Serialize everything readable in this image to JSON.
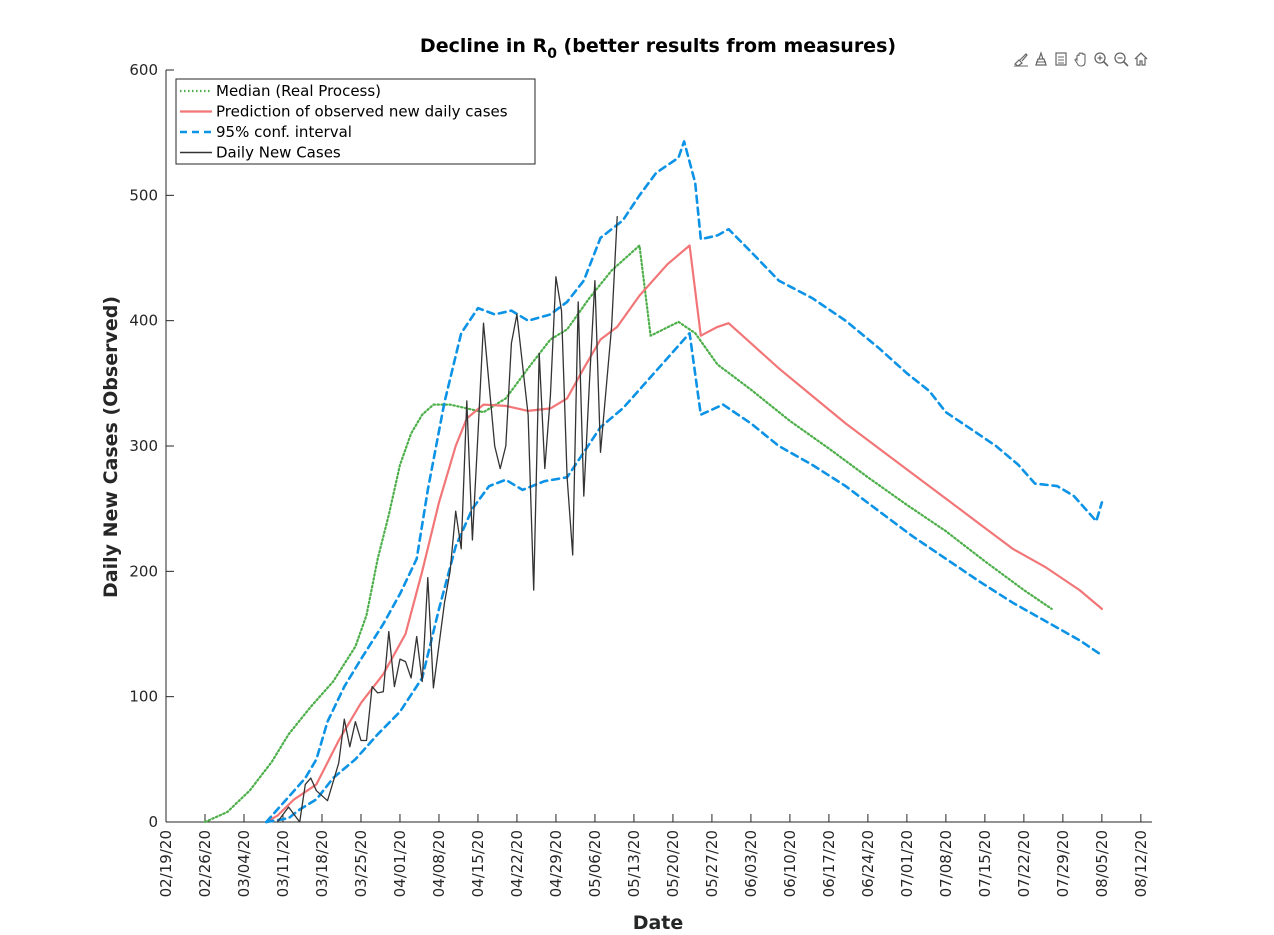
{
  "chart_data": {
    "type": "line",
    "title": "Decline in R",
    "title_subscript": "0",
    "title_suffix": " (better results from measures)",
    "xlabel": "Date",
    "ylabel": "Daily New Cases (Observed)",
    "xlim": [
      "02/19/20",
      "08/14/20"
    ],
    "ylim": [
      0,
      600
    ],
    "x_ticks": [
      "02/19/20",
      "02/26/20",
      "03/04/20",
      "03/11/20",
      "03/18/20",
      "03/25/20",
      "04/01/20",
      "04/08/20",
      "04/15/20",
      "04/22/20",
      "04/29/20",
      "05/06/20",
      "05/13/20",
      "05/20/20",
      "05/27/20",
      "06/03/20",
      "06/10/20",
      "06/17/20",
      "06/24/20",
      "07/01/20",
      "07/08/20",
      "07/15/20",
      "07/22/20",
      "07/29/20",
      "08/05/20",
      "08/12/20"
    ],
    "y_ticks": [
      0,
      100,
      200,
      300,
      400,
      500,
      600
    ],
    "grid": false,
    "legend_position": "top-left",
    "series": [
      {
        "name": "Median (Real Process)",
        "color": "#4daf4a",
        "style": "dotted",
        "points": [
          [
            "02/26/20",
            0
          ],
          [
            "03/01/20",
            8
          ],
          [
            "03/05/20",
            25
          ],
          [
            "03/09/20",
            48
          ],
          [
            "03/12/20",
            70
          ],
          [
            "03/16/20",
            92
          ],
          [
            "03/20/20",
            112
          ],
          [
            "03/24/20",
            140
          ],
          [
            "03/26/20",
            165
          ],
          [
            "03/28/20",
            210
          ],
          [
            "03/30/20",
            245
          ],
          [
            "04/01/20",
            285
          ],
          [
            "04/03/20",
            310
          ],
          [
            "04/05/20",
            325
          ],
          [
            "04/07/20",
            333
          ],
          [
            "04/10/20",
            333
          ],
          [
            "04/13/20",
            330
          ],
          [
            "04/16/20",
            327
          ],
          [
            "04/20/20",
            338
          ],
          [
            "04/24/20",
            362
          ],
          [
            "04/28/20",
            385
          ],
          [
            "05/01/20",
            393
          ],
          [
            "05/05/20",
            418
          ],
          [
            "05/09/20",
            440
          ],
          [
            "05/14/20",
            460
          ],
          [
            "05/16/20",
            388
          ],
          [
            "05/21/20",
            399
          ],
          [
            "05/24/20",
            390
          ],
          [
            "05/28/20",
            365
          ],
          [
            "06/03/20",
            345
          ],
          [
            "06/10/20",
            320
          ],
          [
            "06/17/20",
            298
          ],
          [
            "06/24/20",
            275
          ],
          [
            "07/01/20",
            253
          ],
          [
            "07/08/20",
            232
          ],
          [
            "07/15/20",
            208
          ],
          [
            "07/22/20",
            185
          ],
          [
            "07/27/20",
            170
          ]
        ]
      },
      {
        "name": "Prediction of observed new daily cases",
        "color": "#f27678",
        "style": "solid",
        "points": [
          [
            "03/08/20",
            0
          ],
          [
            "03/10/20",
            5
          ],
          [
            "03/13/20",
            18
          ],
          [
            "03/17/20",
            30
          ],
          [
            "03/21/20",
            65
          ],
          [
            "03/25/20",
            95
          ],
          [
            "03/29/20",
            118
          ],
          [
            "04/02/20",
            150
          ],
          [
            "04/05/20",
            200
          ],
          [
            "04/08/20",
            255
          ],
          [
            "04/11/20",
            300
          ],
          [
            "04/13/20",
            322
          ],
          [
            "04/16/20",
            333
          ],
          [
            "04/20/20",
            332
          ],
          [
            "04/24/20",
            328
          ],
          [
            "04/28/20",
            330
          ],
          [
            "05/01/20",
            338
          ],
          [
            "05/04/20",
            362
          ],
          [
            "05/07/20",
            385
          ],
          [
            "05/10/20",
            395
          ],
          [
            "05/14/20",
            420
          ],
          [
            "05/19/20",
            445
          ],
          [
            "05/23/20",
            460
          ],
          [
            "05/25/20",
            388
          ],
          [
            "05/28/20",
            395
          ],
          [
            "05/30/20",
            398
          ],
          [
            "06/03/20",
            382
          ],
          [
            "06/08/20",
            362
          ],
          [
            "06/14/20",
            340
          ],
          [
            "06/20/20",
            318
          ],
          [
            "06/26/20",
            298
          ],
          [
            "07/02/20",
            278
          ],
          [
            "07/08/20",
            258
          ],
          [
            "07/14/20",
            238
          ],
          [
            "07/20/20",
            218
          ],
          [
            "07/26/20",
            203
          ],
          [
            "08/01/20",
            185
          ],
          [
            "08/05/20",
            170
          ]
        ]
      },
      {
        "name": "95% conf. interval",
        "color": "#0d93e6",
        "style": "dashed",
        "points": [
          [
            "03/08/20",
            0
          ],
          [
            "03/12/20",
            20
          ],
          [
            "03/15/20",
            35
          ],
          [
            "03/17/20",
            50
          ],
          [
            "03/19/20",
            80
          ],
          [
            "03/22/20",
            108
          ],
          [
            "03/25/20",
            130
          ],
          [
            "03/29/20",
            158
          ],
          [
            "04/01/20",
            182
          ],
          [
            "04/04/20",
            210
          ],
          [
            "04/06/20",
            265
          ],
          [
            "04/09/20",
            335
          ],
          [
            "04/12/20",
            390
          ],
          [
            "04/15/20",
            410
          ],
          [
            "04/18/20",
            405
          ],
          [
            "04/21/20",
            408
          ],
          [
            "04/24/20",
            400
          ],
          [
            "04/28/20",
            405
          ],
          [
            "05/01/20",
            415
          ],
          [
            "05/04/20",
            432
          ],
          [
            "05/07/20",
            466
          ],
          [
            "05/11/20",
            480
          ],
          [
            "05/14/20",
            500
          ],
          [
            "05/17/20",
            518
          ],
          [
            "05/21/20",
            530
          ],
          [
            "05/22/20",
            543
          ],
          [
            "05/24/20",
            510
          ],
          [
            "05/25/20",
            465
          ],
          [
            "05/28/20",
            468
          ],
          [
            "05/30/20",
            473
          ],
          [
            "06/03/20",
            455
          ],
          [
            "06/08/20",
            432
          ],
          [
            "06/14/20",
            418
          ],
          [
            "06/20/20",
            400
          ],
          [
            "06/26/20",
            378
          ],
          [
            "07/01/20",
            358
          ],
          [
            "07/05/20",
            344
          ],
          [
            "07/08/20",
            327
          ],
          [
            "07/12/20",
            315
          ],
          [
            "07/17/20",
            300
          ],
          [
            "07/21/20",
            285
          ],
          [
            "07/24/20",
            270
          ],
          [
            "07/28/20",
            268
          ],
          [
            "07/31/20",
            260
          ],
          [
            "08/02/20",
            250
          ],
          [
            "08/04/20",
            240
          ],
          [
            "08/05/20",
            255
          ]
        ]
      },
      {
        "name": "95% conf. interval (lower)",
        "color": "#0d93e6",
        "style": "dashed",
        "points": [
          [
            "03/08/20",
            0
          ],
          [
            "03/12/20",
            3
          ],
          [
            "03/14/20",
            10
          ],
          [
            "03/17/20",
            18
          ],
          [
            "03/20/20",
            35
          ],
          [
            "03/24/20",
            50
          ],
          [
            "03/28/20",
            70
          ],
          [
            "04/01/20",
            88
          ],
          [
            "04/05/20",
            115
          ],
          [
            "04/08/20",
            170
          ],
          [
            "04/11/20",
            220
          ],
          [
            "04/14/20",
            250
          ],
          [
            "04/17/20",
            268
          ],
          [
            "04/20/20",
            273
          ],
          [
            "04/23/20",
            265
          ],
          [
            "04/27/20",
            272
          ],
          [
            "05/01/20",
            275
          ],
          [
            "05/04/20",
            295
          ],
          [
            "05/07/20",
            315
          ],
          [
            "05/11/20",
            330
          ],
          [
            "05/16/20",
            355
          ],
          [
            "05/20/20",
            375
          ],
          [
            "05/23/20",
            390
          ],
          [
            "05/25/20",
            325
          ],
          [
            "05/29/20",
            333
          ],
          [
            "06/03/20",
            318
          ],
          [
            "06/08/20",
            300
          ],
          [
            "06/14/20",
            285
          ],
          [
            "06/20/20",
            268
          ],
          [
            "06/26/20",
            248
          ],
          [
            "07/02/20",
            228
          ],
          [
            "07/08/20",
            210
          ],
          [
            "07/14/20",
            192
          ],
          [
            "07/20/20",
            175
          ],
          [
            "07/26/20",
            160
          ],
          [
            "08/01/20",
            145
          ],
          [
            "08/05/20",
            133
          ]
        ]
      },
      {
        "name": "Daily New Cases",
        "color": "#333333",
        "style": "solid",
        "points": [
          [
            "03/10/20",
            0
          ],
          [
            "03/12/20",
            12
          ],
          [
            "03/13/20",
            6
          ],
          [
            "03/14/20",
            0
          ],
          [
            "03/15/20",
            30
          ],
          [
            "03/16/20",
            35
          ],
          [
            "03/17/20",
            25
          ],
          [
            "03/19/20",
            17
          ],
          [
            "03/20/20",
            32
          ],
          [
            "03/21/20",
            47
          ],
          [
            "03/22/20",
            82
          ],
          [
            "03/23/20",
            60
          ],
          [
            "03/24/20",
            80
          ],
          [
            "03/25/20",
            65
          ],
          [
            "03/26/20",
            65
          ],
          [
            "03/27/20",
            108
          ],
          [
            "03/28/20",
            103
          ],
          [
            "03/29/20",
            104
          ],
          [
            "03/30/20",
            152
          ],
          [
            "03/31/20",
            108
          ],
          [
            "04/01/20",
            130
          ],
          [
            "04/02/20",
            128
          ],
          [
            "04/03/20",
            115
          ],
          [
            "04/04/20",
            148
          ],
          [
            "04/05/20",
            112
          ],
          [
            "04/06/20",
            195
          ],
          [
            "04/07/20",
            107
          ],
          [
            "04/09/20",
            175
          ],
          [
            "04/10/20",
            200
          ],
          [
            "04/11/20",
            248
          ],
          [
            "04/12/20",
            218
          ],
          [
            "04/13/20",
            336
          ],
          [
            "04/14/20",
            225
          ],
          [
            "04/15/20",
            310
          ],
          [
            "04/16/20",
            398
          ],
          [
            "04/18/20",
            300
          ],
          [
            "04/19/20",
            282
          ],
          [
            "04/20/20",
            300
          ],
          [
            "04/21/20",
            382
          ],
          [
            "04/22/20",
            405
          ],
          [
            "04/24/20",
            325
          ],
          [
            "04/25/20",
            185
          ],
          [
            "04/26/20",
            374
          ],
          [
            "04/27/20",
            282
          ],
          [
            "04/28/20",
            340
          ],
          [
            "04/29/20",
            435
          ],
          [
            "04/30/20",
            408
          ],
          [
            "05/01/20",
            275
          ],
          [
            "05/02/20",
            213
          ],
          [
            "05/03/20",
            415
          ],
          [
            "05/04/20",
            260
          ],
          [
            "05/05/20",
            350
          ],
          [
            "05/06/20",
            432
          ],
          [
            "05/07/20",
            295
          ],
          [
            "05/09/20",
            395
          ],
          [
            "05/10/20",
            483
          ]
        ]
      }
    ]
  },
  "legend": [
    {
      "label": "Median (Real Process)",
      "color": "#4daf4a",
      "style": "dotted"
    },
    {
      "label": "Prediction of observed new daily cases",
      "color": "#f27678",
      "style": "solid"
    },
    {
      "label": "95% conf. interval",
      "color": "#0d93e6",
      "style": "dashed"
    },
    {
      "label": "Daily New Cases",
      "color": "#333333",
      "style": "solid"
    }
  ],
  "toolbar": [
    {
      "icon": "brush-icon"
    },
    {
      "icon": "data-tips-icon"
    },
    {
      "icon": "save-icon"
    },
    {
      "icon": "pan-hand-icon"
    },
    {
      "icon": "zoom-in-icon"
    },
    {
      "icon": "zoom-out-icon"
    },
    {
      "icon": "home-icon"
    }
  ]
}
